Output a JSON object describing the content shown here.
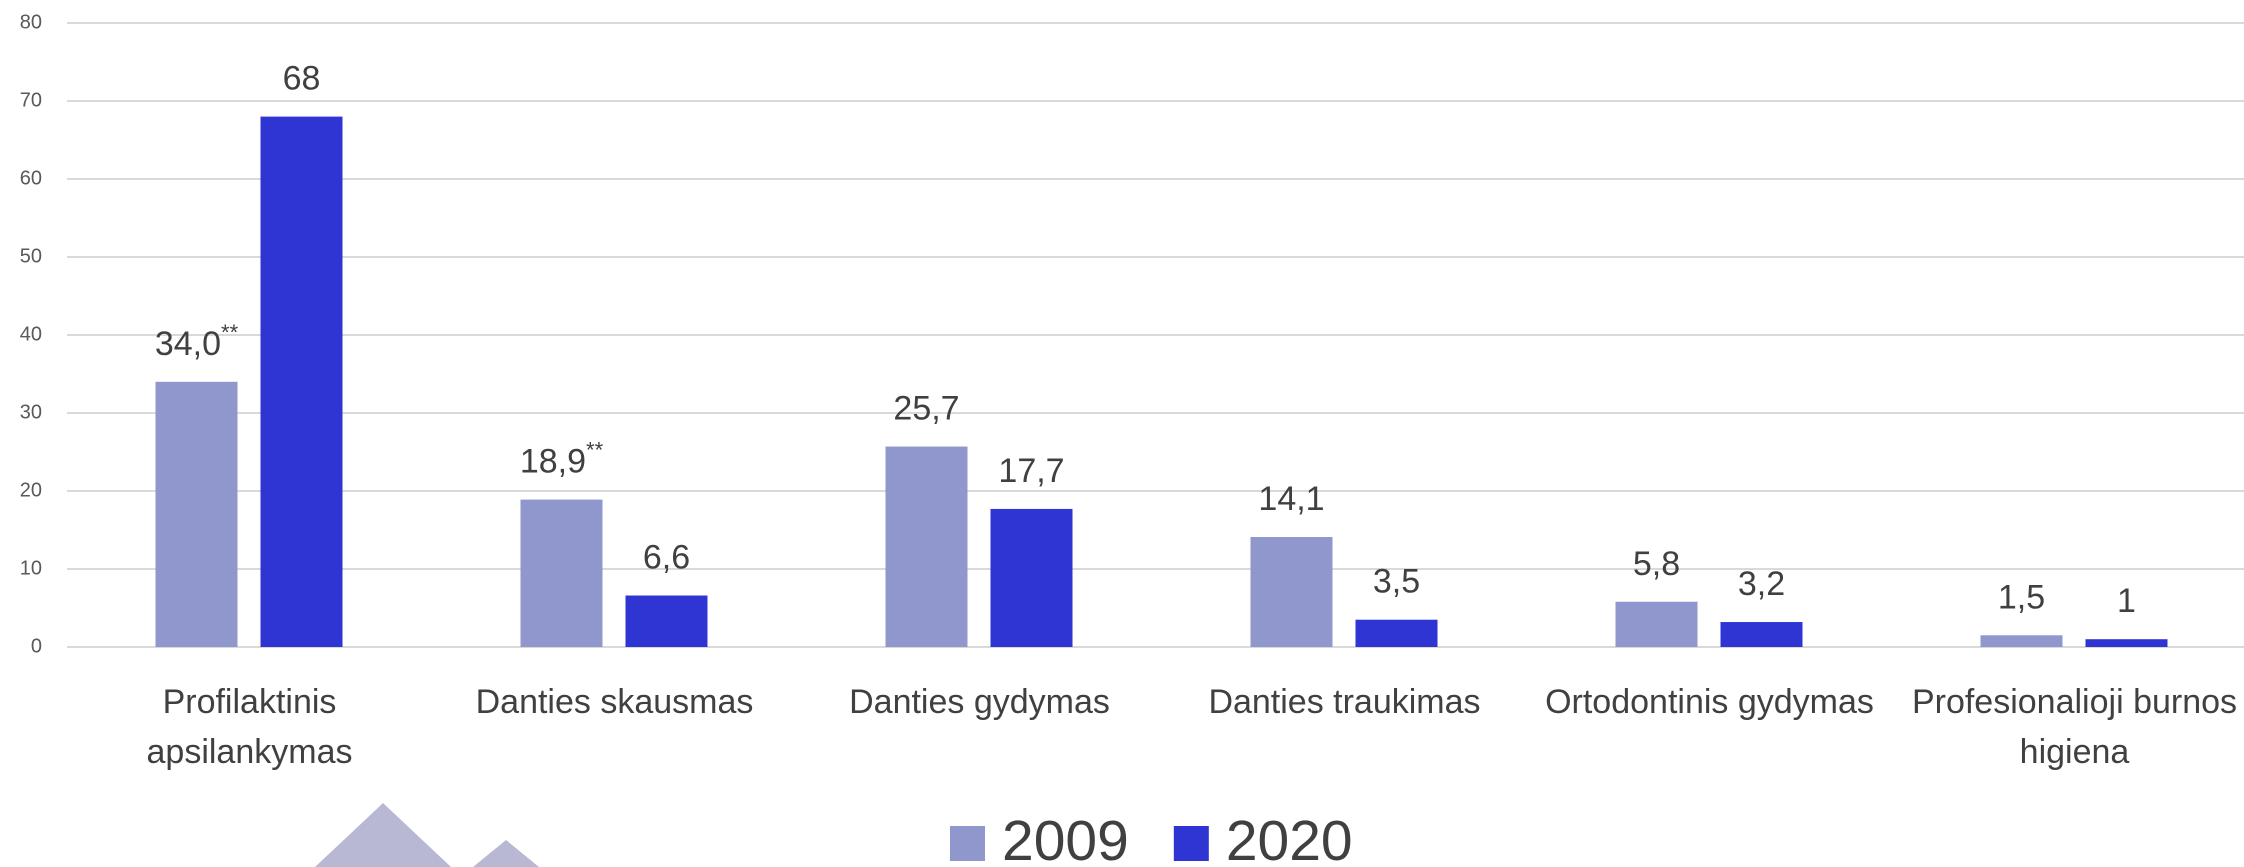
{
  "chart_data": {
    "type": "bar",
    "categories": [
      "Profilaktinis apsilankymas",
      "Danties skausmas",
      "Danties gydymas",
      "Danties traukimas",
      "Ortodontinis gydymas",
      "Profesionalioji burnos higiena"
    ],
    "series": [
      {
        "name": "2009",
        "color": "#8f97cc",
        "values": [
          34,
          18.9,
          25.7,
          14.1,
          5.8,
          1.5
        ],
        "value_labels": [
          "34,0",
          "18,9",
          "25,7",
          "14,1",
          "5,8",
          "1,5"
        ],
        "value_label_superscripts": [
          "**",
          "**",
          null,
          null,
          null,
          null
        ]
      },
      {
        "name": "2020",
        "color": "#2e35d3",
        "values": [
          68,
          6.6,
          17.7,
          3.5,
          3.2,
          1
        ],
        "value_labels": [
          "68",
          "6,6",
          "17,7",
          "3,5",
          "3,2",
          "1"
        ]
      }
    ],
    "ylim": [
      0,
      80
    ],
    "yticks": [
      0,
      10,
      20,
      30,
      40,
      50,
      60,
      70,
      80
    ],
    "grid": true,
    "legend": "bottom"
  }
}
